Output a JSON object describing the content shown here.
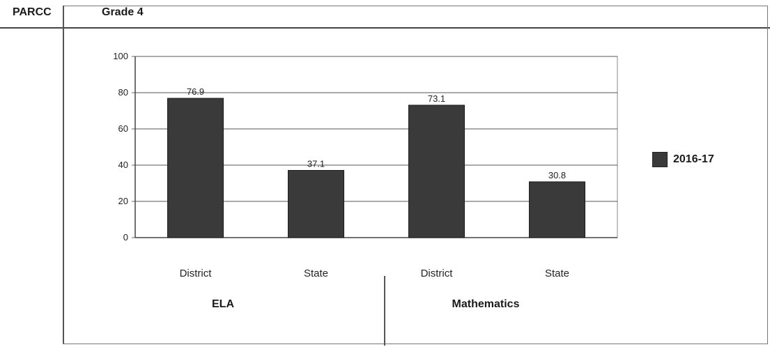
{
  "header": {
    "row_label": "PARCC",
    "grade_label": "Grade 4"
  },
  "chart_data": {
    "type": "bar",
    "categories": [
      "District",
      "State",
      "District",
      "State"
    ],
    "groups": [
      "ELA",
      "Mathematics"
    ],
    "series": [
      {
        "name": "2016-17",
        "values": [
          76.9,
          37.1,
          73.1,
          30.8
        ]
      }
    ],
    "data_labels": [
      "76.9",
      "37.1",
      "73.1",
      "30.8"
    ],
    "yticks": [
      "0",
      "20",
      "40",
      "60",
      "80",
      "100"
    ],
    "ylim": [
      0,
      100
    ],
    "grid": true,
    "legend_position": "right",
    "colors": {
      "bar": "#3a3a3a",
      "grid": "#555555"
    }
  }
}
